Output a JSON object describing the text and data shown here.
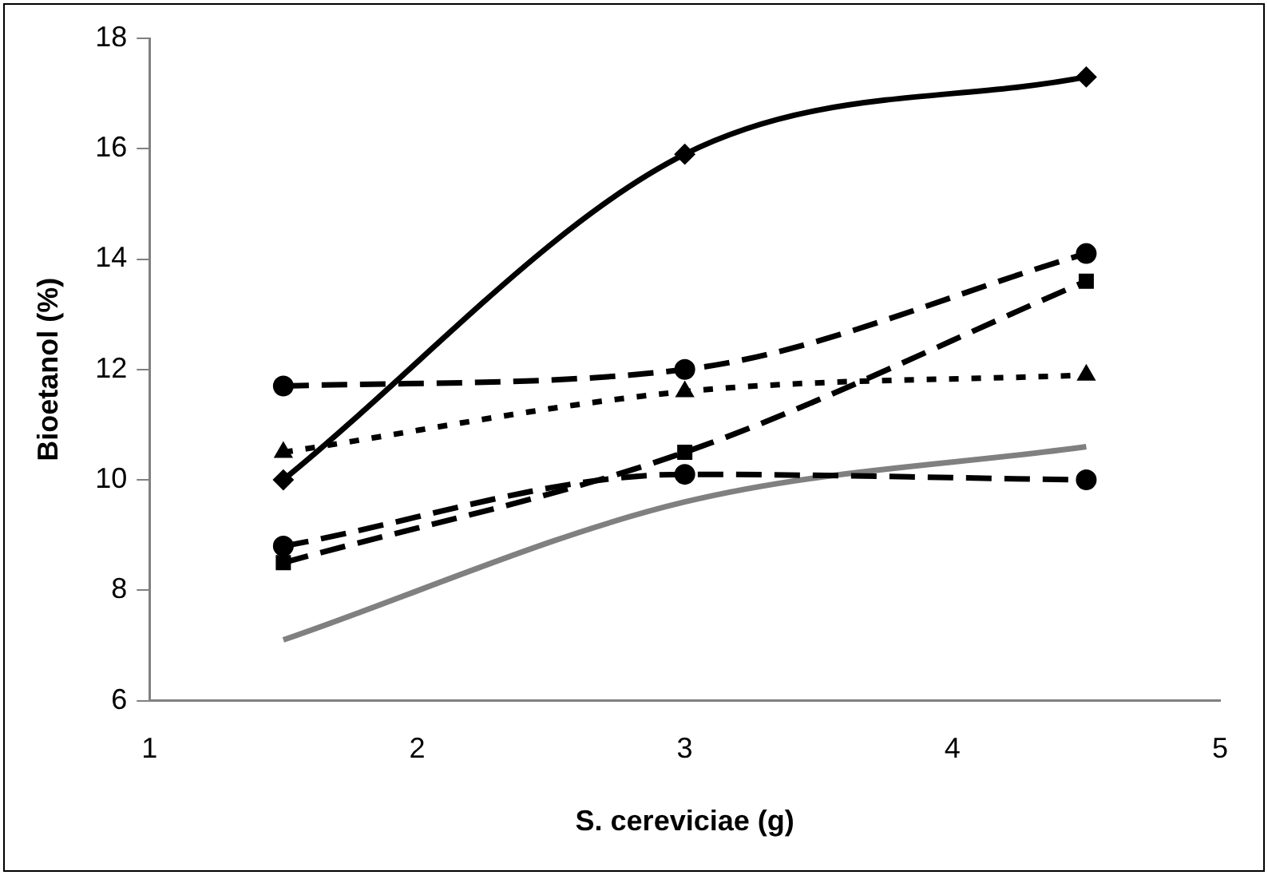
{
  "chart_data": {
    "type": "line",
    "xlabel": "S. cereviciae (g)",
    "ylabel": "Bioetanol (%)",
    "xlim": [
      1,
      5
    ],
    "xticks": [
      1,
      2,
      3,
      4,
      5
    ],
    "ylim": [
      6,
      18
    ],
    "yticks": [
      6,
      8,
      10,
      12,
      14,
      16,
      18
    ],
    "grid": false,
    "legend": false,
    "series": [
      {
        "x": [
          1.5,
          3,
          4.5
        ],
        "values": [
          10.0,
          15.9,
          17.3
        ],
        "color": "#000000",
        "marker": "diamond",
        "line_style": "solid"
      },
      {
        "x": [
          1.5,
          3,
          4.5
        ],
        "values": [
          11.7,
          12.0,
          14.1
        ],
        "color": "#000000",
        "marker": "circle",
        "line_style": "dashed"
      },
      {
        "x": [
          1.5,
          3,
          4.5
        ],
        "values": [
          10.5,
          11.6,
          11.9
        ],
        "color": "#000000",
        "marker": "triangle",
        "line_style": "dotted"
      },
      {
        "x": [
          1.5,
          3,
          4.5
        ],
        "values": [
          8.5,
          10.5,
          13.6
        ],
        "color": "#000000",
        "marker": "square",
        "line_style": "dashed"
      },
      {
        "x": [
          1.5,
          3,
          4.5
        ],
        "values": [
          8.8,
          10.1,
          10.0
        ],
        "color": "#000000",
        "marker": "circle",
        "line_style": "dashed"
      },
      {
        "x": [
          1.5,
          3,
          4.5
        ],
        "values": [
          7.1,
          9.6,
          10.6
        ],
        "color": "#808080",
        "marker": "none",
        "line_style": "solid"
      }
    ]
  }
}
